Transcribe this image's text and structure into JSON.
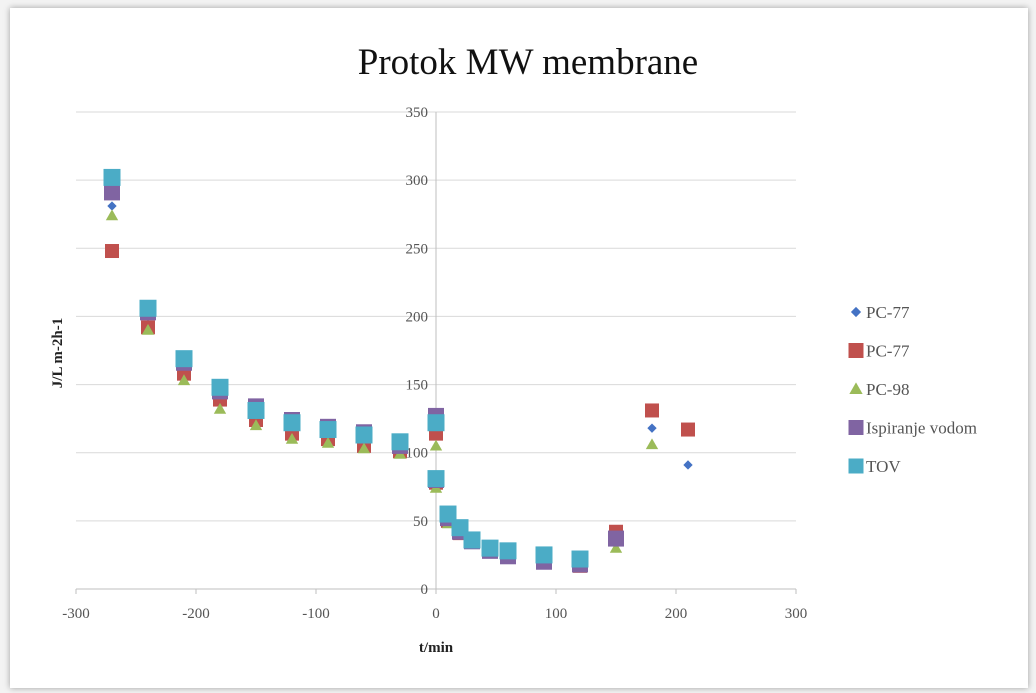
{
  "chart_data": {
    "type": "scatter",
    "title": "Protok MW membrane",
    "xlabel": "t/min",
    "ylabel": "J/L m-2h-1",
    "xlim": [
      -300,
      300
    ],
    "ylim": [
      0,
      350
    ],
    "xticks": [
      -300,
      -200,
      -100,
      0,
      100,
      200,
      300
    ],
    "yticks": [
      0,
      50,
      100,
      150,
      200,
      250,
      300,
      350
    ],
    "grid": "horizontal",
    "legend_position": "right",
    "series": [
      {
        "name": "PC-77",
        "marker": "diamond",
        "color": "#4472C4",
        "points": [
          [
            -270,
            281
          ],
          [
            -240,
            200
          ],
          [
            -210,
            160
          ],
          [
            -180,
            140
          ],
          [
            -150,
            125
          ],
          [
            -120,
            115
          ],
          [
            -90,
            113
          ],
          [
            -60,
            106
          ],
          [
            -30,
            101
          ],
          [
            0,
            116
          ],
          [
            0,
            78
          ],
          [
            10,
            51
          ],
          [
            20,
            41
          ],
          [
            30,
            34
          ],
          [
            45,
            28
          ],
          [
            60,
            25
          ],
          [
            90,
            21
          ],
          [
            120,
            18
          ],
          [
            150,
            35
          ],
          [
            180,
            118
          ],
          [
            210,
            91
          ]
        ]
      },
      {
        "name": "PC-77",
        "marker": "square",
        "color": "#C0504D",
        "points": [
          [
            -270,
            248
          ],
          [
            -240,
            192
          ],
          [
            -210,
            158
          ],
          [
            -180,
            139
          ],
          [
            -150,
            124
          ],
          [
            -120,
            114
          ],
          [
            -90,
            110
          ],
          [
            -60,
            105
          ],
          [
            -30,
            101
          ],
          [
            0,
            114
          ],
          [
            0,
            78
          ],
          [
            10,
            50
          ],
          [
            20,
            41
          ],
          [
            30,
            35
          ],
          [
            45,
            28
          ],
          [
            60,
            24
          ],
          [
            90,
            20
          ],
          [
            120,
            17
          ],
          [
            150,
            42
          ],
          [
            180,
            131
          ],
          [
            210,
            117
          ]
        ]
      },
      {
        "name": "PC-98",
        "marker": "triangle",
        "color": "#9BBB59",
        "points": [
          [
            -270,
            274
          ],
          [
            -240,
            190
          ],
          [
            -210,
            153
          ],
          [
            -180,
            132
          ],
          [
            -150,
            120
          ],
          [
            -120,
            110
          ],
          [
            -90,
            107
          ],
          [
            -60,
            103
          ],
          [
            -30,
            99
          ],
          [
            0,
            105
          ],
          [
            0,
            74
          ],
          [
            10,
            48
          ],
          [
            20,
            40
          ],
          [
            30,
            33
          ],
          [
            45,
            27
          ],
          [
            60,
            24
          ],
          [
            90,
            20
          ],
          [
            120,
            17
          ],
          [
            150,
            30
          ],
          [
            180,
            106
          ]
        ]
      },
      {
        "name": "Ispiranje vodom",
        "marker": "square",
        "color": "#8064A2",
        "points": [
          [
            -270,
            291
          ],
          [
            -240,
            203
          ],
          [
            -210,
            166
          ],
          [
            -180,
            145
          ],
          [
            -150,
            134
          ],
          [
            -120,
            124
          ],
          [
            -90,
            119
          ],
          [
            -60,
            115
          ],
          [
            -30,
            105
          ],
          [
            0,
            127
          ],
          [
            0,
            80
          ],
          [
            10,
            52
          ],
          [
            20,
            42
          ],
          [
            30,
            35
          ],
          [
            45,
            28
          ],
          [
            60,
            24
          ],
          [
            90,
            20
          ],
          [
            120,
            18
          ],
          [
            150,
            37
          ]
        ]
      },
      {
        "name": "TOV",
        "marker": "square",
        "color": "#4BACC6",
        "points": [
          [
            -270,
            302
          ],
          [
            -240,
            206
          ],
          [
            -210,
            169
          ],
          [
            -180,
            148
          ],
          [
            -150,
            131
          ],
          [
            -120,
            122
          ],
          [
            -90,
            117
          ],
          [
            -60,
            113
          ],
          [
            -30,
            108
          ],
          [
            0,
            122
          ],
          [
            0,
            81
          ],
          [
            10,
            55
          ],
          [
            20,
            45
          ],
          [
            30,
            36
          ],
          [
            45,
            30
          ],
          [
            60,
            28
          ],
          [
            90,
            25
          ],
          [
            120,
            22
          ]
        ]
      }
    ]
  }
}
